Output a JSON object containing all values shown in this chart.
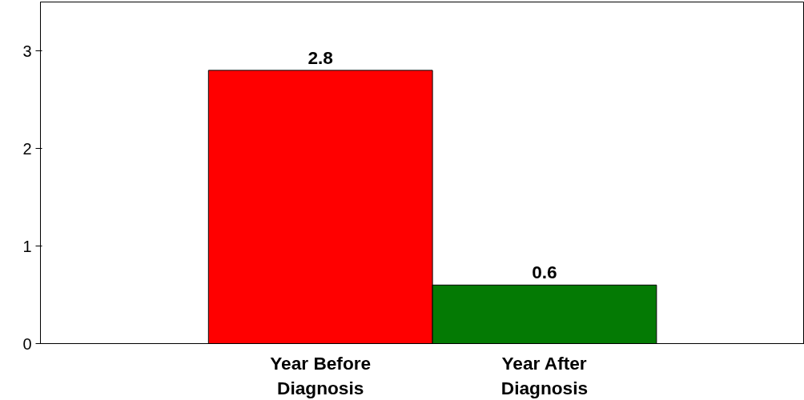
{
  "chart_data": {
    "type": "bar",
    "categories": [
      "Year Before Diagnosis",
      "Year After Diagnosis"
    ],
    "values": [
      2.8,
      0.6
    ],
    "colors": [
      "#ff0000",
      "#047a04"
    ],
    "ylim": [
      0,
      3.5
    ],
    "yticks": [
      0,
      1,
      2,
      3
    ],
    "grid": false,
    "data_labels": true
  }
}
